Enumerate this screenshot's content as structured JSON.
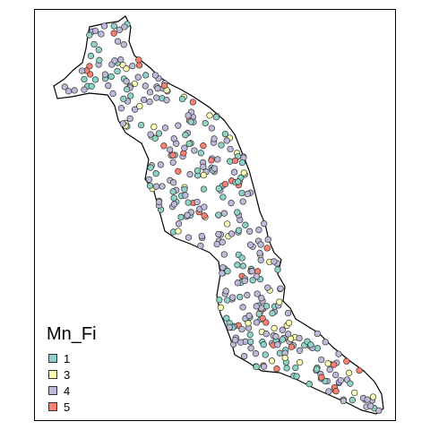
{
  "legend": {
    "title": "Mn_Fi",
    "classes": [
      {
        "label": "1",
        "color": "#8DD3C7"
      },
      {
        "label": "3",
        "color": "#FFFFB3"
      },
      {
        "label": "4",
        "color": "#BEBADA"
      },
      {
        "label": "5",
        "color": "#FB8072"
      }
    ]
  },
  "colors": {
    "frame": "#000000",
    "outline": "#000000",
    "marker_stroke": "#333333",
    "background": "#ffffff"
  }
}
